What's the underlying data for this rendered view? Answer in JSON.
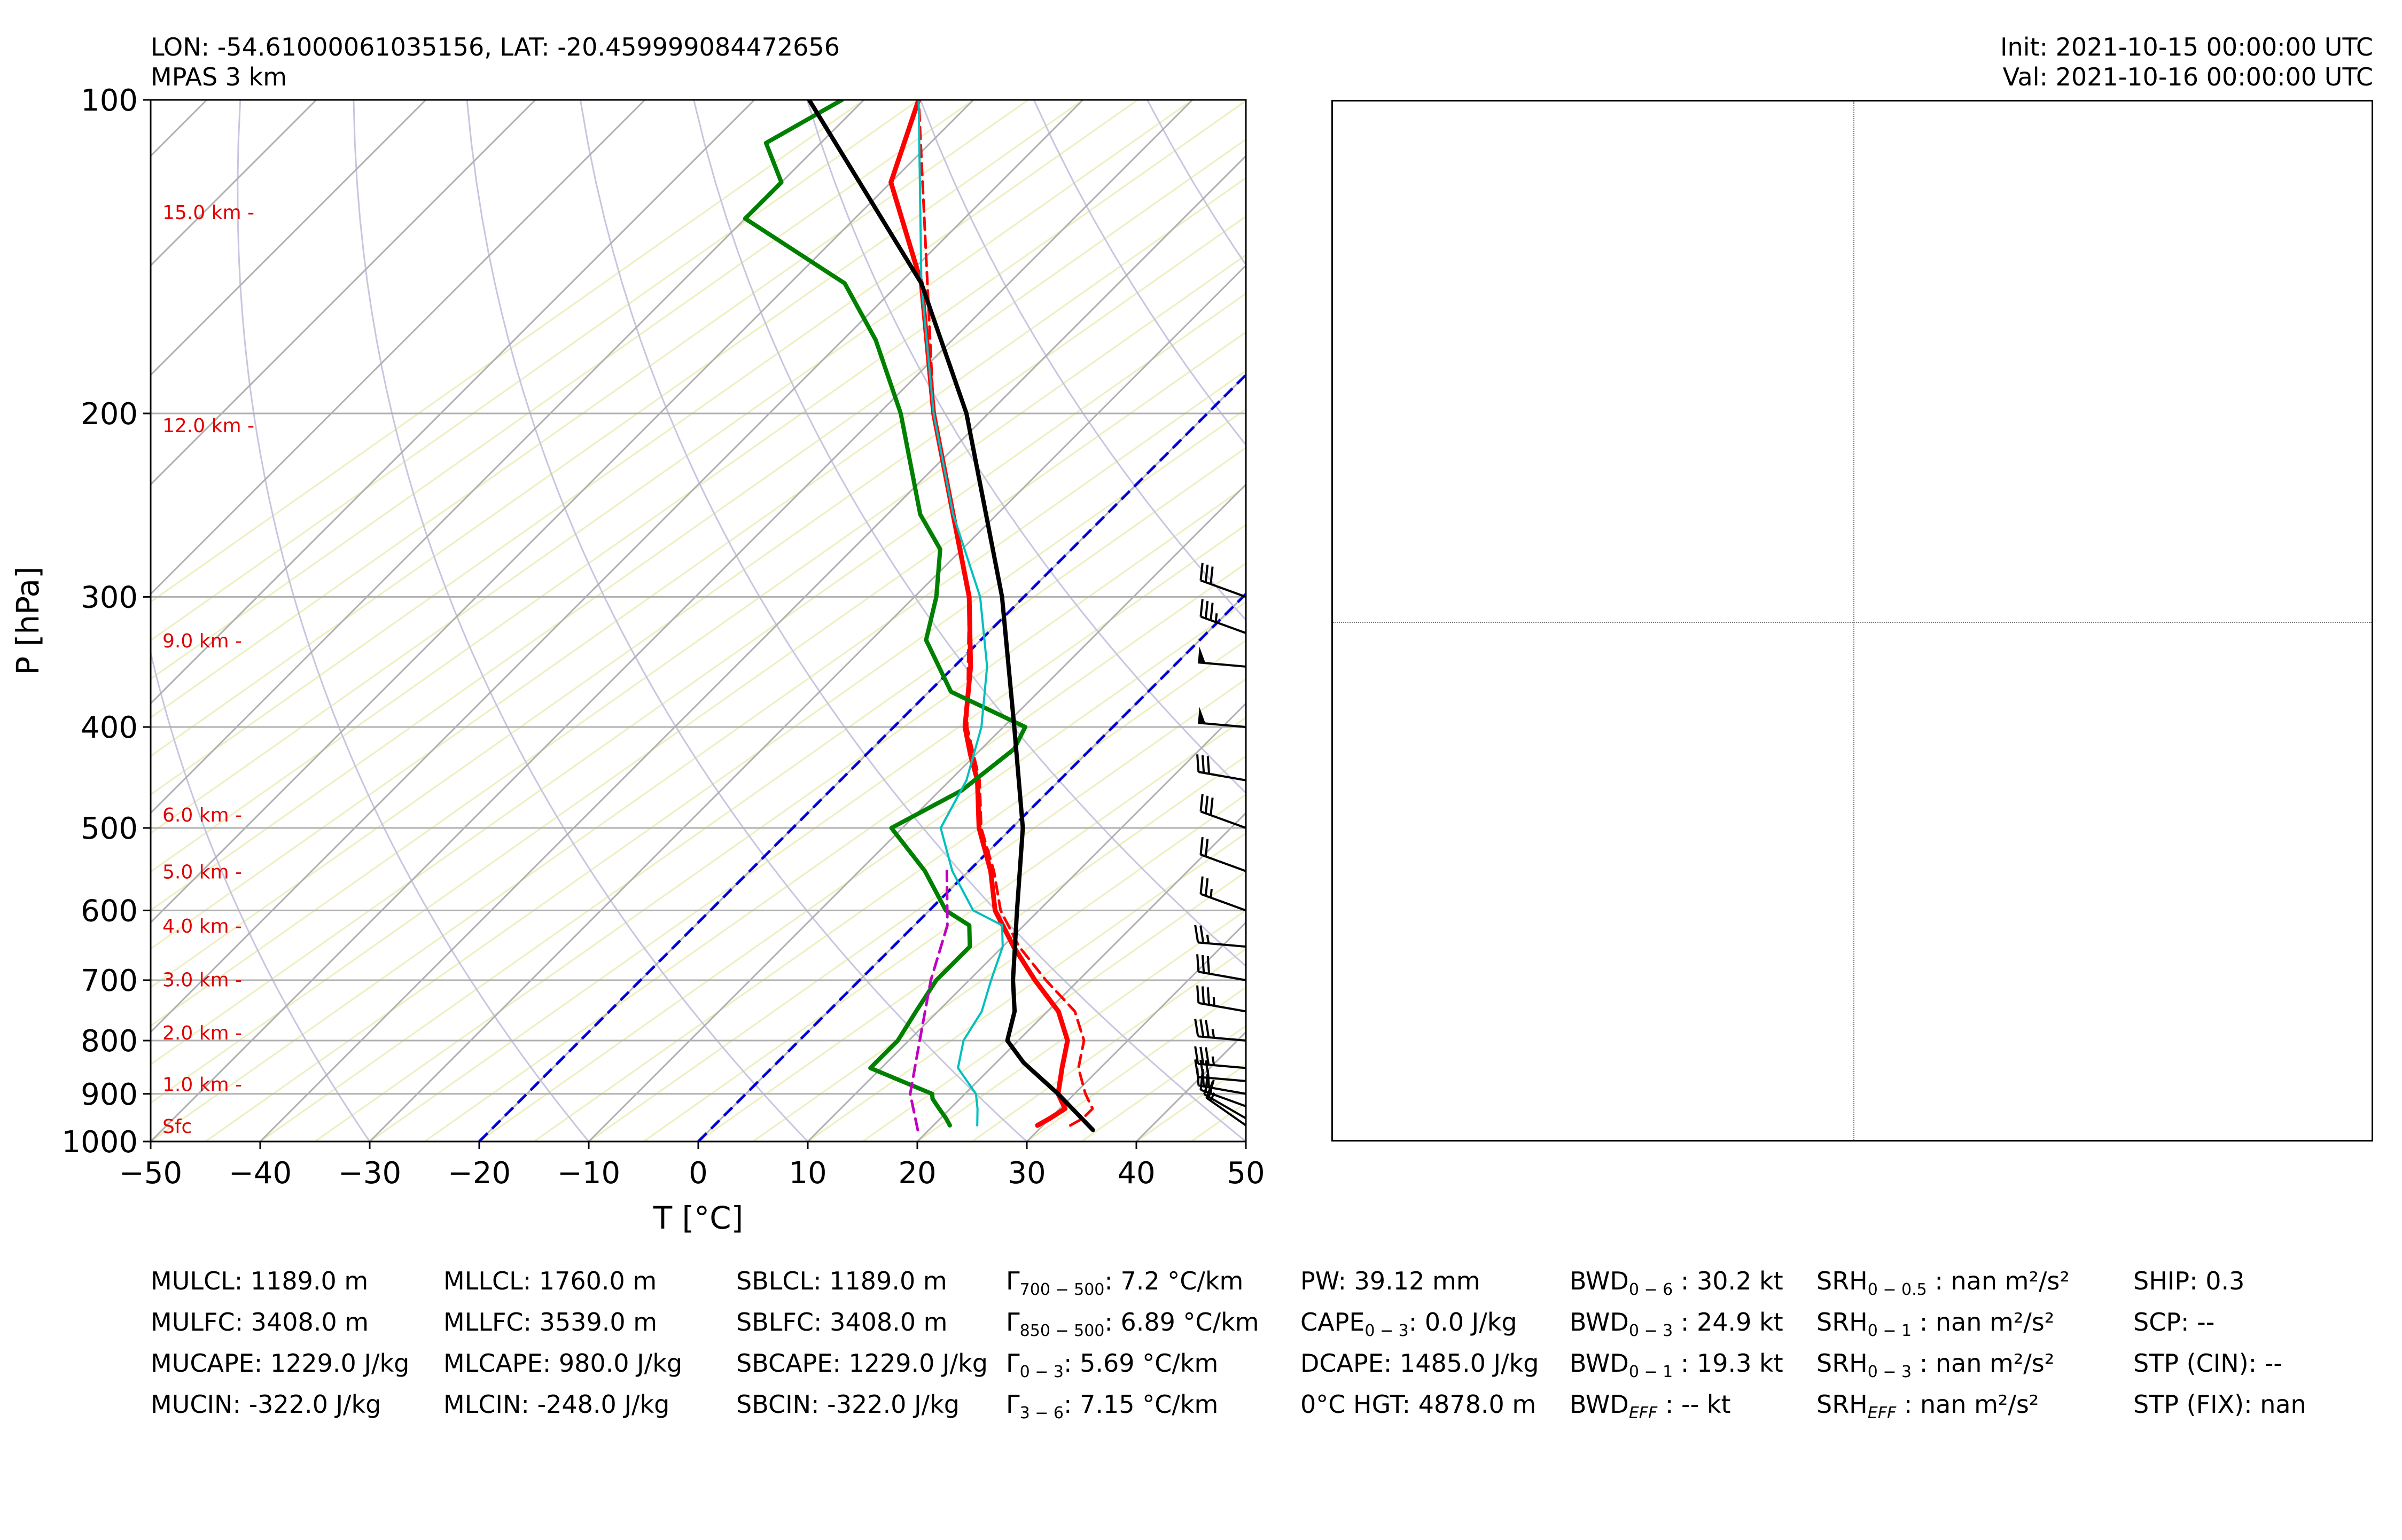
{
  "header": {
    "location": "LON: -54.61000061035156, LAT: -20.459999084472656",
    "model": "MPAS 3 km",
    "init": "Init: 2021-10-15 00:00:00 UTC",
    "valid": "Val: 2021-10-16 00:00:00 UTC"
  },
  "chart_data": {
    "type": "line",
    "title": "",
    "xlabel": "T [°C]",
    "ylabel": "P [hPa]",
    "xlim": [
      -50,
      50
    ],
    "ylim": [
      1000,
      100
    ],
    "y_scale": "log",
    "skew": true,
    "x_ticks": [
      -50,
      -40,
      -30,
      -20,
      -10,
      0,
      10,
      20,
      30,
      40,
      50
    ],
    "x_tick_labels": [
      "−50",
      "−40",
      "−30",
      "−20",
      "−10",
      "0",
      "10",
      "20",
      "30",
      "40",
      "50"
    ],
    "y_ticks": [
      1000,
      900,
      800,
      700,
      600,
      500,
      400,
      300,
      200,
      100
    ],
    "y_tick_labels": [
      "1000",
      "900",
      "800",
      "700",
      "600",
      "500",
      "400",
      "300",
      "200",
      "100"
    ],
    "height_labels": [
      {
        "label": "Sfc",
        "p": 965
      },
      {
        "label": "1.0 km -",
        "p": 880
      },
      {
        "label": "2.0 km -",
        "p": 785
      },
      {
        "label": "3.0 km -",
        "p": 698
      },
      {
        "label": "4.0 km -",
        "p": 620
      },
      {
        "label": "5.0 km -",
        "p": 550
      },
      {
        "label": "6.0 km -",
        "p": 485
      },
      {
        "label": "9.0 km -",
        "p": 330
      },
      {
        "label": "12.0 km -",
        "p": 205
      },
      {
        "label": "15.0 km -",
        "p": 128
      }
    ],
    "series": [
      {
        "key": "temperature",
        "color": "#ff0000",
        "dash": "solid",
        "points": [
          [
            965,
            29.5
          ],
          [
            950,
            30
          ],
          [
            930,
            30.5
          ],
          [
            900,
            28.5
          ],
          [
            850,
            26.5
          ],
          [
            800,
            24.5
          ],
          [
            750,
            21
          ],
          [
            700,
            16
          ],
          [
            650,
            11
          ],
          [
            600,
            6
          ],
          [
            550,
            2
          ],
          [
            500,
            -3
          ],
          [
            450,
            -7.5
          ],
          [
            425,
            -10.5
          ],
          [
            400,
            -13.5
          ],
          [
            350,
            -18.5
          ],
          [
            300,
            -25
          ],
          [
            250,
            -34
          ],
          [
            200,
            -45
          ],
          [
            150,
            -58
          ],
          [
            120,
            -70
          ],
          [
            100,
            -75
          ]
        ]
      },
      {
        "key": "virtual-temperature",
        "color": "#ff0000",
        "dash": "dashed",
        "points": [
          [
            965,
            32.5
          ],
          [
            950,
            33
          ],
          [
            930,
            33
          ],
          [
            900,
            31
          ],
          [
            850,
            28
          ],
          [
            800,
            26
          ],
          [
            750,
            22.5
          ],
          [
            700,
            17
          ],
          [
            650,
            11.5
          ],
          [
            600,
            6.5
          ],
          [
            550,
            2.3
          ],
          [
            500,
            -2.8
          ],
          [
            450,
            -7.3
          ],
          [
            400,
            -13.3
          ],
          [
            300,
            -25
          ],
          [
            200,
            -45
          ],
          [
            100,
            -75
          ]
        ]
      },
      {
        "key": "dewpoint",
        "color": "#008000",
        "dash": "solid",
        "points": [
          [
            965,
            21.5
          ],
          [
            950,
            20.5
          ],
          [
            930,
            19
          ],
          [
            910,
            17.5
          ],
          [
            900,
            17
          ],
          [
            850,
            9
          ],
          [
            800,
            9
          ],
          [
            750,
            8
          ],
          [
            700,
            7
          ],
          [
            650,
            7
          ],
          [
            620,
            5
          ],
          [
            600,
            1.5
          ],
          [
            550,
            -4
          ],
          [
            500,
            -11
          ],
          [
            460,
            -8
          ],
          [
            420,
            -7
          ],
          [
            400,
            -8
          ],
          [
            370,
            -18
          ],
          [
            330,
            -25
          ],
          [
            300,
            -28
          ],
          [
            270,
            -32
          ],
          [
            250,
            -37
          ],
          [
            200,
            -48
          ],
          [
            170,
            -57
          ],
          [
            150,
            -65
          ],
          [
            130,
            -80
          ],
          [
            120,
            -80
          ],
          [
            110,
            -85
          ],
          [
            100,
            -82
          ]
        ]
      },
      {
        "key": "wetbulb",
        "color": "#00bfbf",
        "dash": "solid",
        "points": [
          [
            965,
            24
          ],
          [
            930,
            22.5
          ],
          [
            900,
            21
          ],
          [
            850,
            17
          ],
          [
            800,
            15
          ],
          [
            750,
            14
          ],
          [
            700,
            12
          ],
          [
            650,
            10
          ],
          [
            620,
            8
          ],
          [
            600,
            4
          ],
          [
            550,
            -1.5
          ],
          [
            500,
            -6.5
          ],
          [
            450,
            -8.5
          ],
          [
            400,
            -12
          ],
          [
            350,
            -17
          ],
          [
            300,
            -24
          ],
          [
            250,
            -34
          ],
          [
            200,
            -45
          ],
          [
            150,
            -58
          ],
          [
            100,
            -75
          ]
        ]
      },
      {
        "key": "downdraft-parcel",
        "color": "#c000c0",
        "dash": "dashed",
        "points": [
          [
            975,
            19
          ],
          [
            900,
            15
          ],
          [
            800,
            11
          ],
          [
            700,
            6.5
          ],
          [
            620,
            3
          ],
          [
            550,
            -2
          ]
        ]
      },
      {
        "key": "parcel-profile",
        "color": "#000000",
        "dash": "solid",
        "points": [
          [
            975,
            35
          ],
          [
            900,
            28.5
          ],
          [
            840,
            22.5
          ],
          [
            800,
            19
          ],
          [
            750,
            17
          ],
          [
            700,
            14
          ],
          [
            600,
            8
          ],
          [
            500,
            1
          ],
          [
            400,
            -9
          ],
          [
            300,
            -22
          ],
          [
            200,
            -42
          ],
          [
            150,
            -58
          ],
          [
            100,
            -85
          ]
        ]
      }
    ],
    "wind_barbs": [
      {
        "p": 965,
        "speed_kt": 15,
        "dir_deg": 55
      },
      {
        "p": 950,
        "speed_kt": 20,
        "dir_deg": 60
      },
      {
        "p": 925,
        "speed_kt": 25,
        "dir_deg": 70
      },
      {
        "p": 900,
        "speed_kt": 30,
        "dir_deg": 80
      },
      {
        "p": 875,
        "speed_kt": 30,
        "dir_deg": 85
      },
      {
        "p": 850,
        "speed_kt": 35,
        "dir_deg": 85
      },
      {
        "p": 800,
        "speed_kt": 35,
        "dir_deg": 85
      },
      {
        "p": 750,
        "speed_kt": 35,
        "dir_deg": 80
      },
      {
        "p": 700,
        "speed_kt": 30,
        "dir_deg": 80
      },
      {
        "p": 650,
        "speed_kt": 25,
        "dir_deg": 85
      },
      {
        "p": 600,
        "speed_kt": 25,
        "dir_deg": 70
      },
      {
        "p": 550,
        "speed_kt": 20,
        "dir_deg": 70
      },
      {
        "p": 500,
        "speed_kt": 30,
        "dir_deg": 70
      },
      {
        "p": 450,
        "speed_kt": 30,
        "dir_deg": 80
      },
      {
        "p": 400,
        "speed_kt": 50,
        "dir_deg": 85
      },
      {
        "p": 350,
        "speed_kt": 50,
        "dir_deg": 85
      },
      {
        "p": 325,
        "speed_kt": 35,
        "dir_deg": 70
      },
      {
        "p": 300,
        "speed_kt": 30,
        "dir_deg": 70
      }
    ]
  },
  "hodograph": {
    "x_zero_frac": 0.5,
    "y_zero_frac": 0.5
  },
  "indices": {
    "col1": [
      "MULCL: 1189.0 m",
      "MULFC: 3408.0 m",
      "MUCAPE: 1229.0 J/kg",
      "MUCIN: -322.0 J/kg"
    ],
    "col2": [
      "MLLCL: 1760.0 m",
      "MLLFC: 3539.0 m",
      "MLCAPE: 980.0 J/kg",
      "MLCIN: -248.0 J/kg"
    ],
    "col3": [
      "SBLCL: 1189.0 m",
      "SBLFC: 3408.0 m",
      "SBCAPE: 1229.0 J/kg",
      "SBCIN: -322.0 J/kg"
    ],
    "col4": [
      {
        "main": "Γ",
        "sub": "700 − 500",
        "rest": ": 7.2 °C/km"
      },
      {
        "main": "Γ",
        "sub": "850 − 500",
        "rest": ": 6.89 °C/km"
      },
      {
        "main": "Γ",
        "sub": "0 − 3",
        "rest": ": 5.69 °C/km"
      },
      {
        "main": "Γ",
        "sub": "3 − 6",
        "rest": ": 7.15 °C/km"
      }
    ],
    "col5": [
      {
        "main": "PW: 39.12 mm",
        "sub": "",
        "rest": ""
      },
      {
        "main": "CAPE",
        "sub": "0 − 3",
        "rest": ": 0.0 J/kg"
      },
      {
        "main": "DCAPE: 1485.0 J/kg",
        "sub": "",
        "rest": ""
      },
      {
        "main": "0°C HGT: 4878.0 m",
        "sub": "",
        "rest": ""
      }
    ],
    "col6": [
      {
        "main": "BWD",
        "sub": "0 − 6",
        "rest": " : 30.2 kt"
      },
      {
        "main": "BWD",
        "sub": "0 − 3",
        "rest": " : 24.9 kt"
      },
      {
        "main": "BWD",
        "sub": "0 − 1",
        "rest": " : 19.3 kt"
      },
      {
        "main": "BWD",
        "sub": "EFF",
        "rest": " : -- kt"
      }
    ],
    "col7": [
      {
        "main": "SRH",
        "sub": "0 − 0.5",
        "rest": " : nan m²/s²"
      },
      {
        "main": "SRH",
        "sub": "0 − 1",
        "rest": " : nan m²/s²"
      },
      {
        "main": "SRH",
        "sub": "0 − 3",
        "rest": " : nan m²/s²"
      },
      {
        "main": "SRH",
        "sub": "EFF",
        "rest": " : nan m²/s²"
      }
    ],
    "col8": [
      "SHIP: 0.3",
      "SCP: --",
      "STP (CIN): --",
      "STP (FIX): nan"
    ]
  }
}
